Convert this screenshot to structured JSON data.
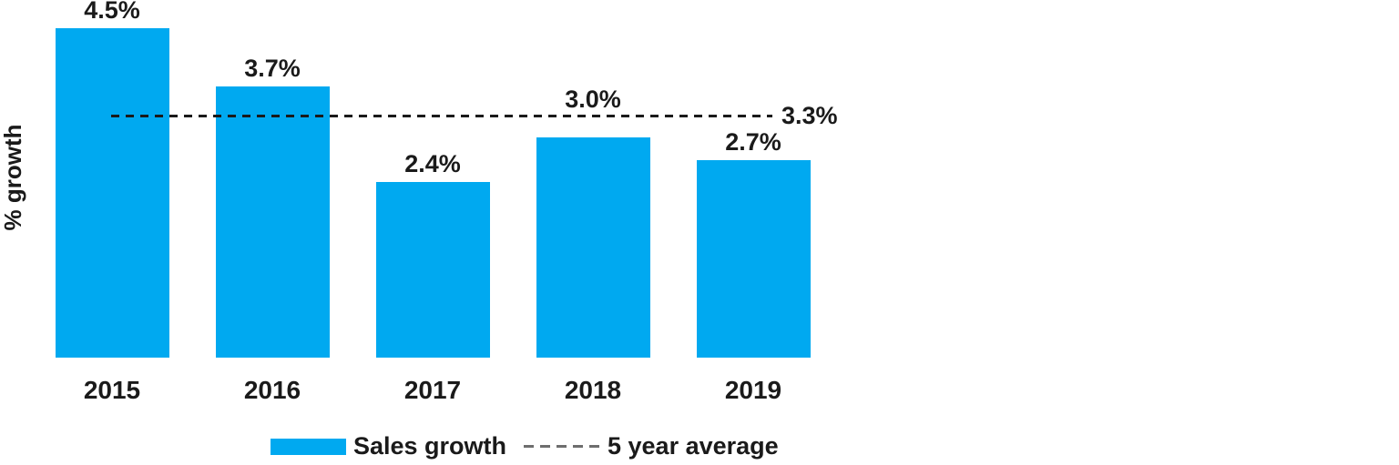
{
  "chart_data": {
    "type": "bar",
    "title": "",
    "xlabel": "",
    "ylabel": "% growth",
    "categories": [
      "2015",
      "2016",
      "2017",
      "2018",
      "2019"
    ],
    "series": [
      {
        "name": "Sales growth",
        "values": [
          4.5,
          3.7,
          2.4,
          3.0,
          2.7
        ]
      }
    ],
    "value_labels": [
      "4.5%",
      "3.7%",
      "2.4%",
      "3.0%",
      "2.7%"
    ],
    "average_line": {
      "name": "5 year average",
      "value": 3.3,
      "label": "3.3%"
    },
    "ylim": [
      0,
      4.85
    ],
    "grid": false,
    "axis_lines": false,
    "legend_position": "bottom",
    "colors": {
      "bar": "#00A9F0",
      "average_line": "#1a1a1a",
      "legend_dash": "#6e6e6e",
      "text": "#1a1a1a",
      "background": "#ffffff"
    }
  },
  "legend": {
    "items": [
      {
        "label": "Sales growth",
        "swatch": "bar"
      },
      {
        "label": "5 year average",
        "swatch": "dash"
      }
    ]
  }
}
